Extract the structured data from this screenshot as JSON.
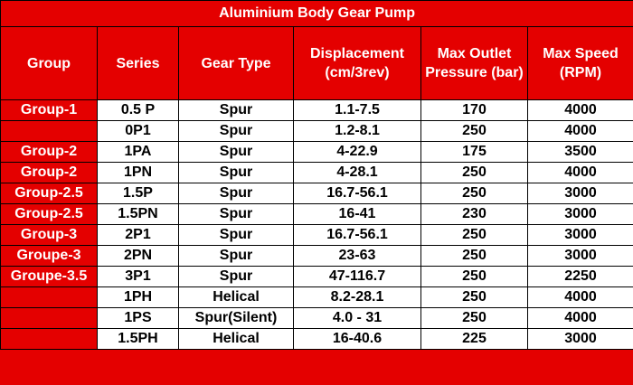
{
  "title": "Aluminium Body Gear Pump",
  "columns": [
    "Group",
    "Series",
    "Gear Type",
    "Displacement (cm/3rev)",
    "Max Outlet Pressure (bar)",
    "Max Speed (RPM)"
  ],
  "rows": [
    [
      "Group-1",
      "0.5 P",
      "Spur",
      "1.1-7.5",
      "170",
      "4000"
    ],
    [
      "",
      "0P1",
      "Spur",
      "1.2-8.1",
      "250",
      "4000"
    ],
    [
      "Group-2",
      "1PA",
      "Spur",
      "4-22.9",
      "175",
      "3500"
    ],
    [
      "Group-2",
      "1PN",
      "Spur",
      "4-28.1",
      "250",
      "4000"
    ],
    [
      "Group-2.5",
      "1.5P",
      "Spur",
      "16.7-56.1",
      "250",
      "3000"
    ],
    [
      "Group-2.5",
      "1.5PN",
      "Spur",
      "16-41",
      "230",
      "3000"
    ],
    [
      "Group-3",
      "2P1",
      "Spur",
      "16.7-56.1",
      "250",
      "3000"
    ],
    [
      "Groupe-3",
      "2PN",
      "Spur",
      "23-63",
      "250",
      "3000"
    ],
    [
      "Groupe-3.5",
      "3P1",
      "Spur",
      "47-116.7",
      "250",
      "2250"
    ],
    [
      "",
      "1PH",
      "Helical",
      "8.2-28.1",
      "250",
      "4000"
    ],
    [
      "",
      "1PS",
      "Spur(Silent)",
      "4.0 - 31",
      "250",
      "4000"
    ],
    [
      "",
      "1.5PH",
      "Helical",
      "16-40.6",
      "225",
      "3000"
    ]
  ]
}
